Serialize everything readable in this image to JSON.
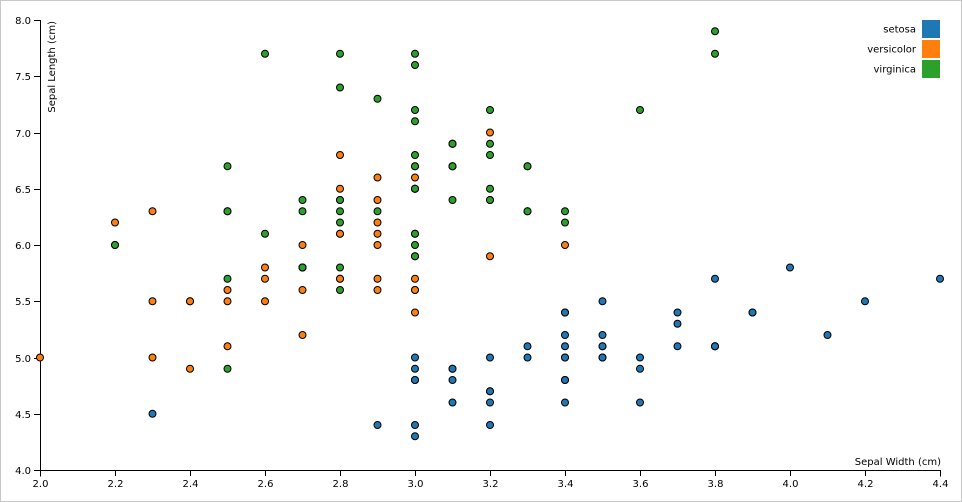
{
  "chart_data": {
    "type": "scatter",
    "xlabel": "Sepal Width (cm)",
    "ylabel": "Sepal Length (cm)",
    "xlim": [
      2.0,
      4.4
    ],
    "ylim": [
      4.0,
      8.0
    ],
    "x_ticks": [
      "2.0",
      "2.2",
      "2.4",
      "2.6",
      "2.8",
      "3.0",
      "3.2",
      "3.4",
      "3.6",
      "3.8",
      "4.0",
      "4.2",
      "4.4"
    ],
    "y_ticks": [
      "4.0",
      "4.5",
      "5.0",
      "5.5",
      "6.0",
      "6.5",
      "7.0",
      "7.5",
      "8.0"
    ],
    "grid": false,
    "legend_position": "top-right",
    "series": [
      {
        "name": "setosa",
        "color": "#1f77b4",
        "points": [
          [
            3.5,
            5.1
          ],
          [
            3.0,
            4.9
          ],
          [
            3.2,
            4.7
          ],
          [
            3.1,
            4.6
          ],
          [
            3.6,
            5.0
          ],
          [
            3.9,
            5.4
          ],
          [
            3.4,
            4.6
          ],
          [
            3.4,
            5.0
          ],
          [
            2.9,
            4.4
          ],
          [
            3.1,
            4.9
          ],
          [
            3.7,
            5.4
          ],
          [
            3.4,
            4.8
          ],
          [
            3.0,
            4.8
          ],
          [
            3.0,
            4.3
          ],
          [
            4.0,
            5.8
          ],
          [
            4.4,
            5.7
          ],
          [
            3.9,
            5.4
          ],
          [
            3.5,
            5.1
          ],
          [
            3.8,
            5.7
          ],
          [
            3.8,
            5.1
          ],
          [
            3.4,
            5.4
          ],
          [
            3.7,
            5.1
          ],
          [
            3.6,
            4.6
          ],
          [
            3.3,
            5.1
          ],
          [
            3.4,
            4.8
          ],
          [
            3.0,
            5.0
          ],
          [
            3.4,
            5.0
          ],
          [
            3.5,
            5.2
          ],
          [
            3.4,
            5.2
          ],
          [
            3.2,
            4.7
          ],
          [
            3.1,
            4.8
          ],
          [
            3.4,
            5.4
          ],
          [
            4.1,
            5.2
          ],
          [
            4.2,
            5.5
          ],
          [
            3.1,
            4.9
          ],
          [
            3.2,
            5.0
          ],
          [
            3.5,
            5.5
          ],
          [
            3.6,
            4.9
          ],
          [
            3.0,
            4.4
          ],
          [
            3.4,
            5.1
          ],
          [
            3.5,
            5.0
          ],
          [
            2.3,
            4.5
          ],
          [
            3.2,
            4.4
          ],
          [
            3.5,
            5.0
          ],
          [
            3.8,
            5.1
          ],
          [
            3.0,
            4.8
          ],
          [
            3.8,
            5.1
          ],
          [
            3.2,
            4.6
          ],
          [
            3.7,
            5.3
          ],
          [
            3.3,
            5.0
          ]
        ]
      },
      {
        "name": "versicolor",
        "color": "#ff7f0e",
        "points": [
          [
            3.2,
            7.0
          ],
          [
            3.2,
            6.4
          ],
          [
            3.1,
            6.9
          ],
          [
            2.3,
            5.5
          ],
          [
            2.8,
            6.5
          ],
          [
            2.8,
            5.7
          ],
          [
            3.3,
            6.3
          ],
          [
            2.4,
            4.9
          ],
          [
            2.9,
            6.6
          ],
          [
            2.7,
            5.2
          ],
          [
            2.0,
            5.0
          ],
          [
            3.0,
            5.9
          ],
          [
            2.2,
            6.0
          ],
          [
            2.9,
            6.1
          ],
          [
            2.9,
            5.6
          ],
          [
            3.1,
            6.7
          ],
          [
            3.0,
            5.6
          ],
          [
            2.7,
            5.8
          ],
          [
            2.2,
            6.2
          ],
          [
            2.5,
            5.6
          ],
          [
            3.2,
            5.9
          ],
          [
            2.8,
            6.1
          ],
          [
            2.5,
            6.3
          ],
          [
            2.8,
            6.1
          ],
          [
            2.9,
            6.4
          ],
          [
            3.0,
            6.6
          ],
          [
            2.8,
            6.8
          ],
          [
            3.0,
            6.7
          ],
          [
            2.9,
            6.0
          ],
          [
            2.6,
            5.7
          ],
          [
            2.4,
            5.5
          ],
          [
            2.4,
            5.5
          ],
          [
            2.7,
            5.8
          ],
          [
            2.7,
            6.0
          ],
          [
            3.0,
            5.4
          ],
          [
            3.4,
            6.0
          ],
          [
            3.1,
            6.7
          ],
          [
            2.3,
            6.3
          ],
          [
            3.0,
            5.6
          ],
          [
            2.5,
            5.5
          ],
          [
            2.6,
            5.5
          ],
          [
            3.0,
            6.1
          ],
          [
            2.6,
            5.8
          ],
          [
            2.3,
            5.0
          ],
          [
            2.7,
            5.6
          ],
          [
            3.0,
            5.7
          ],
          [
            2.9,
            5.7
          ],
          [
            2.9,
            6.2
          ],
          [
            2.5,
            5.1
          ],
          [
            2.8,
            5.7
          ]
        ]
      },
      {
        "name": "virginica",
        "color": "#2ca02c",
        "points": [
          [
            3.3,
            6.3
          ],
          [
            2.7,
            5.8
          ],
          [
            3.0,
            7.1
          ],
          [
            2.9,
            6.3
          ],
          [
            3.0,
            6.5
          ],
          [
            3.0,
            7.6
          ],
          [
            2.5,
            4.9
          ],
          [
            2.9,
            7.3
          ],
          [
            2.5,
            6.7
          ],
          [
            3.6,
            7.2
          ],
          [
            3.2,
            6.5
          ],
          [
            2.7,
            6.4
          ],
          [
            3.0,
            6.8
          ],
          [
            2.5,
            5.7
          ],
          [
            2.8,
            5.8
          ],
          [
            3.2,
            6.4
          ],
          [
            3.0,
            6.5
          ],
          [
            3.8,
            7.7
          ],
          [
            2.6,
            7.7
          ],
          [
            2.2,
            6.0
          ],
          [
            3.2,
            6.9
          ],
          [
            2.8,
            5.6
          ],
          [
            2.8,
            7.7
          ],
          [
            2.7,
            6.3
          ],
          [
            3.3,
            6.7
          ],
          [
            3.2,
            7.2
          ],
          [
            2.8,
            6.2
          ],
          [
            3.0,
            6.1
          ],
          [
            2.8,
            6.4
          ],
          [
            3.0,
            7.2
          ],
          [
            2.8,
            7.4
          ],
          [
            3.8,
            7.9
          ],
          [
            2.8,
            6.4
          ],
          [
            2.8,
            6.3
          ],
          [
            2.6,
            6.1
          ],
          [
            3.0,
            7.7
          ],
          [
            3.4,
            6.3
          ],
          [
            3.1,
            6.4
          ],
          [
            3.0,
            6.0
          ],
          [
            3.1,
            6.9
          ],
          [
            3.1,
            6.7
          ],
          [
            3.1,
            6.9
          ],
          [
            2.7,
            5.8
          ],
          [
            3.2,
            6.8
          ],
          [
            3.3,
            6.7
          ],
          [
            3.0,
            6.7
          ],
          [
            2.5,
            6.3
          ],
          [
            3.0,
            6.5
          ],
          [
            3.4,
            6.2
          ],
          [
            3.0,
            5.9
          ]
        ]
      }
    ]
  }
}
